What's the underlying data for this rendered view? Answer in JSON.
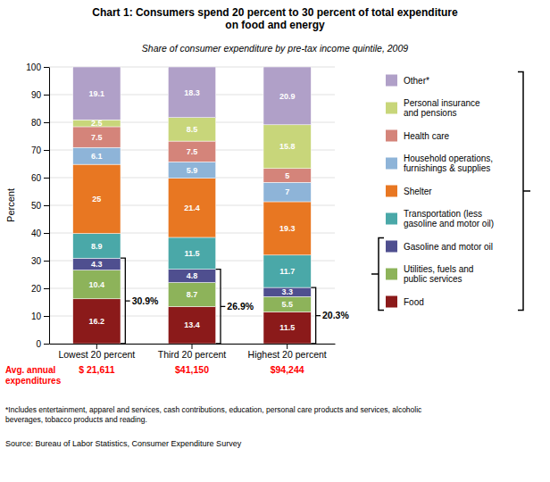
{
  "chart_data": {
    "type": "bar",
    "stacked": true,
    "title": "Chart 1: Consumers spend 20 percent to 30 percent of total expenditure\non food and energy",
    "subtitle": "Share of consumer expenditure by pre-tax income quintile, 2009",
    "categories": [
      "Lowest 20 percent",
      "Third 20 percent",
      "Highest 20 percent"
    ],
    "series": [
      {
        "name": "Food",
        "color": "#8B1A1A",
        "values": [
          16.2,
          13.4,
          11.5
        ]
      },
      {
        "name": "Utilities, fuels and\npublic services",
        "color": "#8DB35A",
        "values": [
          10.4,
          8.7,
          5.5
        ]
      },
      {
        "name": "Gasoline and motor oil",
        "color": "#4F4F8F",
        "values": [
          4.3,
          4.8,
          3.3
        ]
      },
      {
        "name": "Transportation (less\ngasoline and motor oil)",
        "color": "#4AA8A8",
        "values": [
          8.9,
          11.5,
          11.7
        ]
      },
      {
        "name": "Shelter",
        "color": "#E87722",
        "values": [
          25,
          21.4,
          19.3
        ]
      },
      {
        "name": "Household operations,\nfurnishings & supplies",
        "color": "#8EB4D8",
        "values": [
          6.1,
          5.9,
          7
        ]
      },
      {
        "name": "Health care",
        "color": "#D4847A",
        "values": [
          7.5,
          7.5,
          5
        ]
      },
      {
        "name": "Personal insurance\nand pensions",
        "color": "#C8D67A",
        "values": [
          2.5,
          8.5,
          15.8
        ]
      },
      {
        "name": "Other*",
        "color": "#B0A0C8",
        "values": [
          19.1,
          18.3,
          20.9
        ]
      }
    ],
    "data_labels": true,
    "bracket_values": [
      30.9,
      26.9,
      20.3
    ],
    "bracket_labels": [
      "30.9%",
      "26.9%",
      "20.3%"
    ],
    "ylabel": "Percent",
    "ylim": [
      0,
      100
    ],
    "yticks": [
      0,
      10,
      20,
      30,
      40,
      50,
      60,
      70,
      80,
      90,
      100
    ],
    "grid": true,
    "legend": "right",
    "expenditures_title": "Avg. annual\nexpenditures",
    "expenditures": [
      "$ 21,611",
      "$41,150",
      "$94,244"
    ],
    "footnote": "*Includes entertainment, apparel and services, cash contributions, education, personal care products and services, alcoholic\nbeverages, tobacco products and reading.",
    "source": "Source:  Bureau of Labor Statistics, Consumer Expenditure Survey"
  }
}
